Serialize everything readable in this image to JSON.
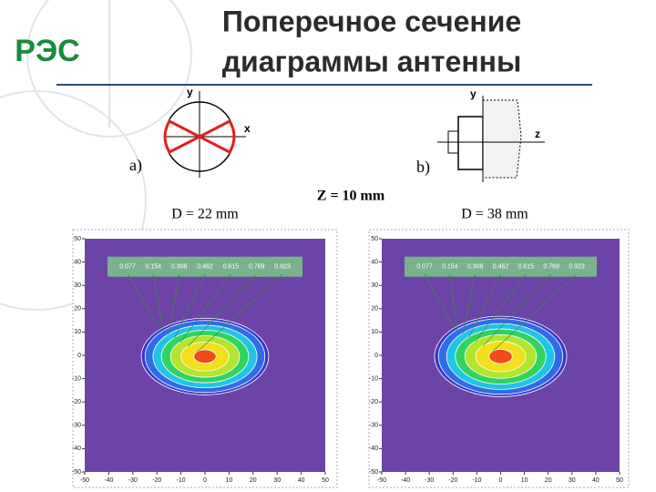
{
  "logo": "РЭС",
  "title": [
    "Поперечное сечение",
    "диаграммы антенны"
  ],
  "diagram_a": {
    "axis_y": "y",
    "axis_x": "x",
    "label": "a)"
  },
  "diagram_b": {
    "axis_y": "y",
    "axis_z": "z",
    "label": "b)"
  },
  "captions": {
    "left": "D = 22 mm",
    "center": "Z = 10 mm",
    "right": "D = 38 mm"
  },
  "chart_data": [
    {
      "type": "contour",
      "xlim": [
        -50,
        50
      ],
      "ylim": [
        -50,
        50
      ],
      "xticks": [
        -50,
        -40,
        -30,
        -20,
        -10,
        0,
        10,
        20,
        30,
        40,
        50
      ],
      "yticks": [
        50,
        40,
        30,
        20,
        10,
        0,
        -10,
        -20,
        -30,
        -40,
        -50
      ],
      "levels": [
        0.077,
        0.154,
        0.308,
        0.462,
        0.615,
        0.769,
        0.923
      ],
      "colors": [
        "#3a36c8",
        "#2f6ce8",
        "#22c4e6",
        "#32d25e",
        "#b4e42e",
        "#f2e01e",
        "#f04a1e"
      ]
    },
    {
      "type": "contour",
      "xlim": [
        -50,
        50
      ],
      "ylim": [
        -50,
        50
      ],
      "xticks": [
        -50,
        -40,
        -30,
        -20,
        -10,
        0,
        10,
        20,
        30,
        40,
        50
      ],
      "yticks": [
        50,
        40,
        30,
        20,
        10,
        0,
        -10,
        -20,
        -30,
        -40,
        -50
      ],
      "levels": [
        0.077,
        0.154,
        0.308,
        0.462,
        0.615,
        0.769,
        0.923
      ],
      "colors": [
        "#3a36c8",
        "#2f6ce8",
        "#22c4e6",
        "#32d25e",
        "#b4e42e",
        "#f2e01e",
        "#f04a1e"
      ]
    }
  ]
}
